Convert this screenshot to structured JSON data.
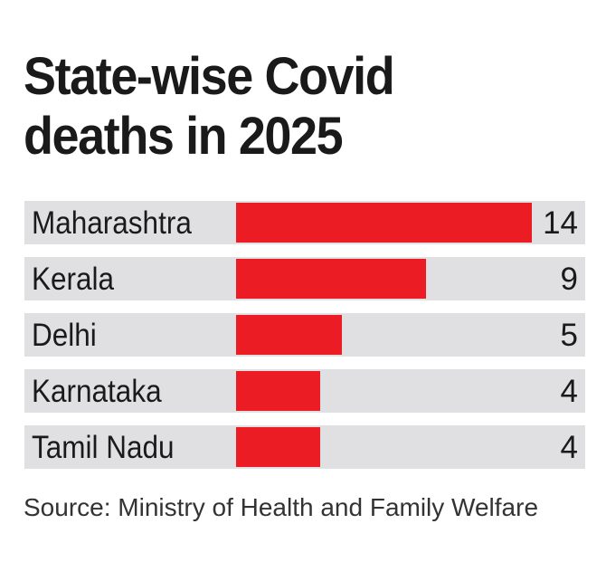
{
  "chart_data": {
    "type": "bar",
    "orientation": "horizontal",
    "title": "State-wise Covid deaths in 2025",
    "categories": [
      "Maharashtra",
      "Kerala",
      "Delhi",
      "Karnataka",
      "Tamil Nadu"
    ],
    "values": [
      14,
      9,
      5,
      4,
      4
    ],
    "xlim": [
      0,
      14
    ],
    "bar_color": "#ec1c24",
    "track_color": "#e0e0e2",
    "source": "Source: Ministry of Health and Family Welfare"
  }
}
